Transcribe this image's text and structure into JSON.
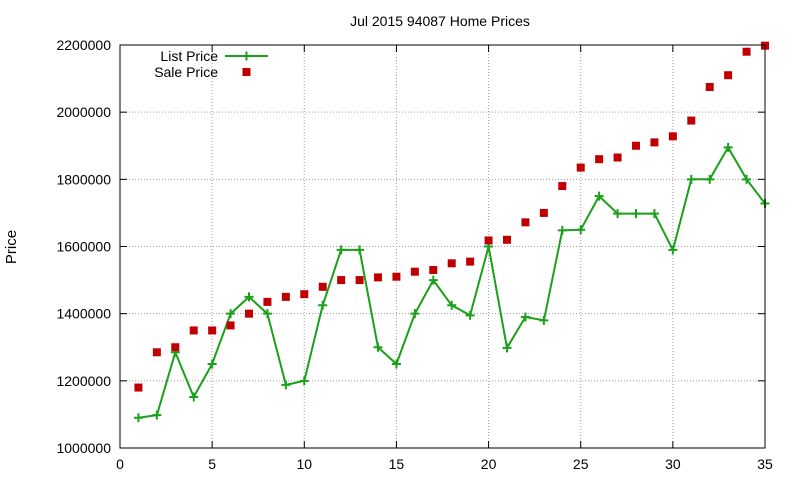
{
  "chart_data": {
    "type": "line",
    "title": "Jul 2015 94087 Home Prices",
    "xlabel": "",
    "ylabel": "Price",
    "xlim": [
      0,
      35
    ],
    "ylim": [
      1000000,
      2200000
    ],
    "x_ticks": [
      0,
      5,
      10,
      15,
      20,
      25,
      30,
      35
    ],
    "y_ticks": [
      1000000,
      1200000,
      1400000,
      1600000,
      1800000,
      2000000,
      2200000
    ],
    "grid": true,
    "legend_position": "top-left",
    "x": [
      1,
      2,
      3,
      4,
      5,
      6,
      7,
      8,
      9,
      10,
      11,
      12,
      13,
      14,
      15,
      16,
      17,
      18,
      19,
      20,
      21,
      22,
      23,
      24,
      25,
      26,
      27,
      28,
      29,
      30,
      31,
      32,
      33,
      34,
      35
    ],
    "series": [
      {
        "name": "List Price",
        "style": "line-plus",
        "color": "#1aa01a",
        "values": [
          1090000,
          1098000,
          1285000,
          1152000,
          1250000,
          1400000,
          1450000,
          1400000,
          1188000,
          1200000,
          1425000,
          1590000,
          1590000,
          1300000,
          1250000,
          1400000,
          1500000,
          1425000,
          1395000,
          1600000,
          1298000,
          1390000,
          1380000,
          1648000,
          1650000,
          1750000,
          1698000,
          1698000,
          1698000,
          1590000,
          1800000,
          1800000,
          1895000,
          1800000,
          1728000
        ]
      },
      {
        "name": "Sale Price",
        "style": "square",
        "color": "#c00000",
        "values": [
          1180000,
          1285000,
          1300000,
          1350000,
          1350000,
          1365000,
          1400000,
          1435000,
          1450000,
          1458000,
          1480000,
          1500000,
          1500000,
          1508000,
          1510000,
          1525000,
          1530000,
          1550000,
          1555000,
          1618000,
          1620000,
          1672000,
          1700000,
          1780000,
          1835000,
          1860000,
          1865000,
          1900000,
          1910000,
          1928000,
          1975000,
          2075000,
          2110000,
          2180000,
          2198000
        ]
      }
    ]
  }
}
